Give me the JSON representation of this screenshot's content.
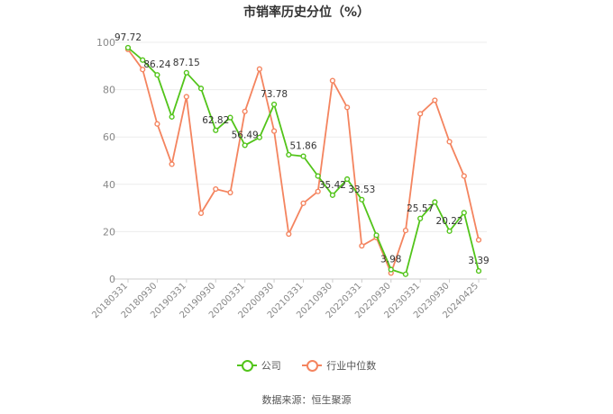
{
  "title": "市销率历史分位（%）",
  "source": "数据来源：恒生聚源",
  "chart_data": {
    "type": "line",
    "title": "市销率历史分位（%）",
    "ylim": [
      0,
      100
    ],
    "yticks": [
      0,
      20,
      40,
      60,
      80,
      100
    ],
    "grid": true,
    "legend_position": "bottom",
    "xtick_labels": [
      "20180331",
      "20180930",
      "20190331",
      "20190930",
      "20200331",
      "20200930",
      "20210331",
      "20210930",
      "20220331",
      "20220930",
      "20230331",
      "20230930",
      "20240425"
    ],
    "series": [
      {
        "name": "公司",
        "color": "#52c41a",
        "values": [
          97.72,
          92.5,
          86.24,
          68.5,
          87.15,
          80.5,
          62.82,
          68.2,
          56.49,
          59.8,
          73.78,
          52.5,
          51.86,
          43.5,
          35.42,
          42.2,
          33.53,
          18.5,
          3.98,
          2.0,
          25.57,
          32.5,
          20.22,
          28.0,
          3.39
        ],
        "labels": [
          "97.72",
          "",
          "86.24",
          "",
          "87.15",
          "",
          "62.82",
          "",
          "56.49",
          "",
          "73.78",
          "",
          "51.86",
          "",
          "35.42",
          "",
          "33.53",
          "",
          "3.98",
          "",
          "25.57",
          "",
          "20.22",
          "",
          "3.39"
        ]
      },
      {
        "name": "行业中位数",
        "color": "#f4845f",
        "values": [
          97.0,
          88.5,
          65.5,
          48.5,
          77.0,
          27.8,
          38.0,
          36.5,
          70.8,
          88.7,
          62.5,
          19.0,
          32.0,
          37.0,
          83.8,
          72.5,
          14.0,
          17.5,
          2.5,
          20.5,
          69.8,
          75.5,
          58.0,
          43.5,
          16.5
        ]
      }
    ]
  }
}
